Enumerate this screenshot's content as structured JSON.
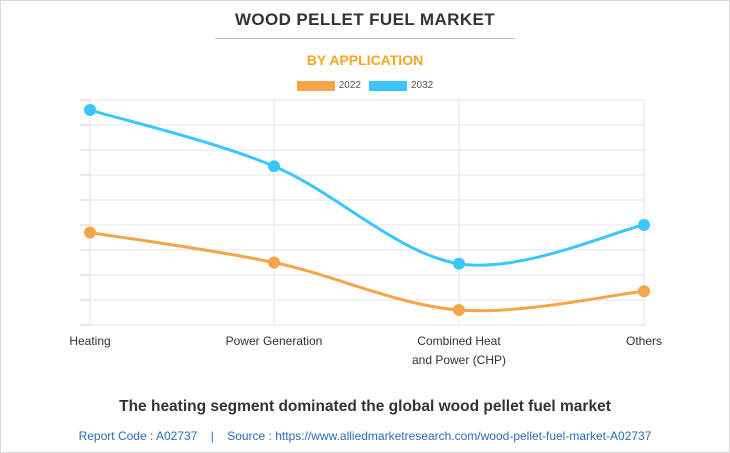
{
  "header": {
    "title": "WOOD PELLET FUEL MARKET",
    "subtitle": "BY APPLICATION"
  },
  "chart_data": {
    "type": "line",
    "title": "WOOD PELLET FUEL MARKET",
    "subtitle": "BY APPLICATION",
    "categories": [
      "Heating",
      "Power Generation",
      "Combined Heat and Power (CHP)",
      "Others"
    ],
    "category_lines": [
      [
        "Heating"
      ],
      [
        "Power Generation"
      ],
      [
        "Combined Heat",
        "and Power (CHP)"
      ],
      [
        "Others"
      ]
    ],
    "series": [
      {
        "name": "2022",
        "color": "#f5a54a",
        "values": [
          3.7,
          2.5,
          0.6,
          1.35
        ]
      },
      {
        "name": "2032",
        "color": "#3cc6ff",
        "values": [
          8.6,
          6.35,
          2.45,
          4.0
        ]
      }
    ],
    "ylim": [
      0,
      9
    ],
    "xlabel": "",
    "ylabel": "",
    "grid": true,
    "legend": "top-center",
    "smooth": true
  },
  "footer": {
    "caption": "The heating segment dominated the global wood pellet fuel market",
    "report_code_label": "Report Code : A02737",
    "separator": "|",
    "source_label": "Source : https://www.alliedmarketresearch.com/wood-pellet-fuel-market-A02737"
  }
}
